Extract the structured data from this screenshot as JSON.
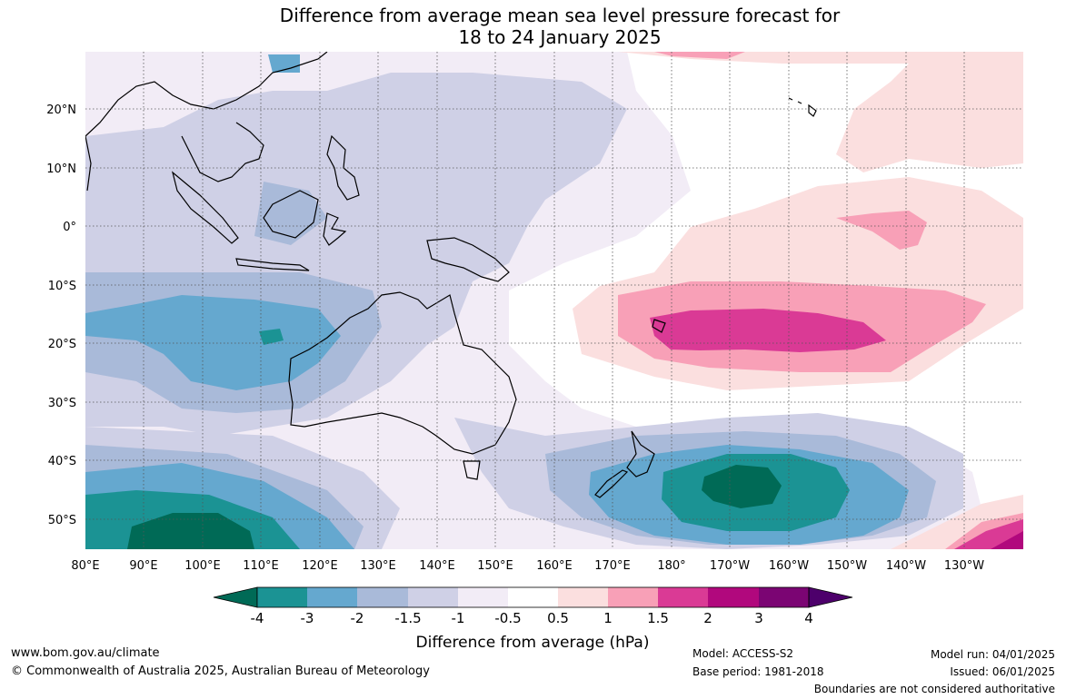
{
  "title": {
    "line1": "Difference from average mean sea level pressure forecast for",
    "line2": "18 to 24 January 2025"
  },
  "map": {
    "lon_labels": [
      "80°E",
      "90°E",
      "100°E",
      "110°E",
      "120°E",
      "130°E",
      "140°E",
      "150°E",
      "160°E",
      "170°E",
      "180°",
      "170°W",
      "160°W",
      "150°W",
      "140°W",
      "130°W"
    ],
    "lat_labels": [
      "20°N",
      "10°N",
      "0°",
      "10°S",
      "20°S",
      "30°S",
      "40°S",
      "50°S"
    ]
  },
  "colorbar": {
    "levels": [
      "-4",
      "-3",
      "-2",
      "-1.5",
      "-1",
      "-0.5",
      "0.5",
      "1",
      "1.5",
      "2",
      "3",
      "4"
    ],
    "colors": [
      "#006a56",
      "#1b9394",
      "#65a8cf",
      "#a9bad9",
      "#cfd0e6",
      "#f2ecf6",
      "#ffffff",
      "#fbdfdf",
      "#f8a0b7",
      "#da3a95",
      "#b1087d",
      "#7b0573",
      "#4d006b"
    ],
    "label": "Difference from average (hPa)"
  },
  "footer": {
    "website": "www.bom.gov.au/climate",
    "copyright": "© Commonwealth of Australia 2025, Australian Bureau of Meteorology",
    "model": "Model: ACCESS-S2",
    "base_period": "Base period: 1981-2018",
    "model_run": "Model run: 04/01/2025",
    "issued": "Issued: 06/01/2025",
    "disclaimer": "Boundaries are not considered authoritative"
  }
}
